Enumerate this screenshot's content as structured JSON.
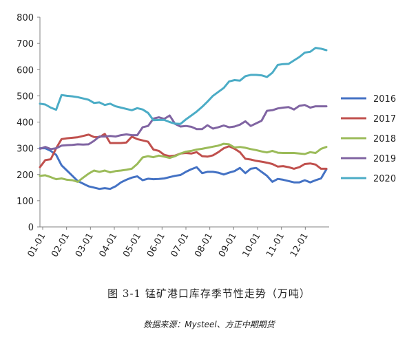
{
  "chart_data": {
    "type": "line",
    "ylim": [
      0,
      800
    ],
    "yticks": [
      0,
      100,
      200,
      300,
      400,
      500,
      600,
      700,
      800
    ],
    "xticks": [
      "01-01",
      "02-01",
      "03-01",
      "04-01",
      "05-01",
      "06-01",
      "07-01",
      "08-01",
      "09-01",
      "10-01",
      "11-01",
      "12-01"
    ],
    "legend_position": "right",
    "grid": false,
    "series": [
      {
        "name": "2016",
        "color": "#4472C4",
        "values": [
          300,
          300,
          290,
          275,
          235,
          215,
          195,
          175,
          165,
          155,
          150,
          145,
          148,
          145,
          155,
          170,
          180,
          188,
          193,
          178,
          184,
          182,
          183,
          185,
          190,
          195,
          198,
          210,
          220,
          228,
          205,
          210,
          210,
          207,
          200,
          207,
          213,
          225,
          205,
          222,
          225,
          210,
          195,
          172,
          183,
          180,
          175,
          170,
          170,
          178,
          170,
          178,
          185,
          220
        ]
      },
      {
        "name": "2017",
        "color": "#C0504D",
        "values": [
          228,
          255,
          258,
          300,
          335,
          338,
          340,
          342,
          347,
          352,
          343,
          342,
          355,
          320,
          320,
          320,
          322,
          344,
          335,
          330,
          325,
          295,
          290,
          275,
          270,
          272,
          280,
          282,
          280,
          285,
          270,
          268,
          273,
          285,
          300,
          308,
          298,
          285,
          260,
          257,
          252,
          249,
          245,
          240,
          230,
          232,
          228,
          222,
          228,
          240,
          242,
          238,
          222,
          222
        ]
      },
      {
        "name": "2018",
        "color": "#9BBB59",
        "values": [
          195,
          197,
          190,
          182,
          185,
          180,
          178,
          172,
          188,
          203,
          215,
          210,
          215,
          208,
          213,
          215,
          218,
          222,
          240,
          265,
          270,
          266,
          272,
          268,
          263,
          270,
          280,
          287,
          290,
          295,
          298,
          302,
          306,
          310,
          317,
          315,
          303,
          305,
          302,
          297,
          293,
          288,
          284,
          290,
          283,
          282,
          282,
          282,
          280,
          278,
          285,
          282,
          298,
          305
        ]
      },
      {
        "name": "2019",
        "color": "#8064A2",
        "values": [
          298,
          305,
          297,
          300,
          310,
          312,
          313,
          315,
          314,
          315,
          328,
          345,
          345,
          347,
          345,
          350,
          353,
          350,
          350,
          380,
          385,
          413,
          418,
          412,
          425,
          393,
          383,
          385,
          382,
          373,
          373,
          388,
          375,
          380,
          387,
          380,
          383,
          390,
          403,
          385,
          395,
          405,
          443,
          445,
          452,
          455,
          457,
          448,
          462,
          465,
          455,
          460,
          460,
          460
        ]
      },
      {
        "name": "2020",
        "color": "#4BACC6",
        "values": [
          470,
          467,
          455,
          447,
          503,
          500,
          498,
          495,
          490,
          485,
          473,
          475,
          465,
          470,
          460,
          455,
          450,
          445,
          453,
          448,
          435,
          407,
          408,
          408,
          400,
          394,
          393,
          410,
          425,
          440,
          458,
          478,
          500,
          515,
          530,
          555,
          560,
          558,
          575,
          580,
          580,
          578,
          572,
          588,
          618,
          621,
          622,
          635,
          648,
          665,
          668,
          683,
          680,
          674
        ]
      }
    ]
  },
  "caption": "图 3-1  锰矿港口库存季节性走势（万吨）",
  "source": "数据来源：Mysteel、方正中期期货"
}
